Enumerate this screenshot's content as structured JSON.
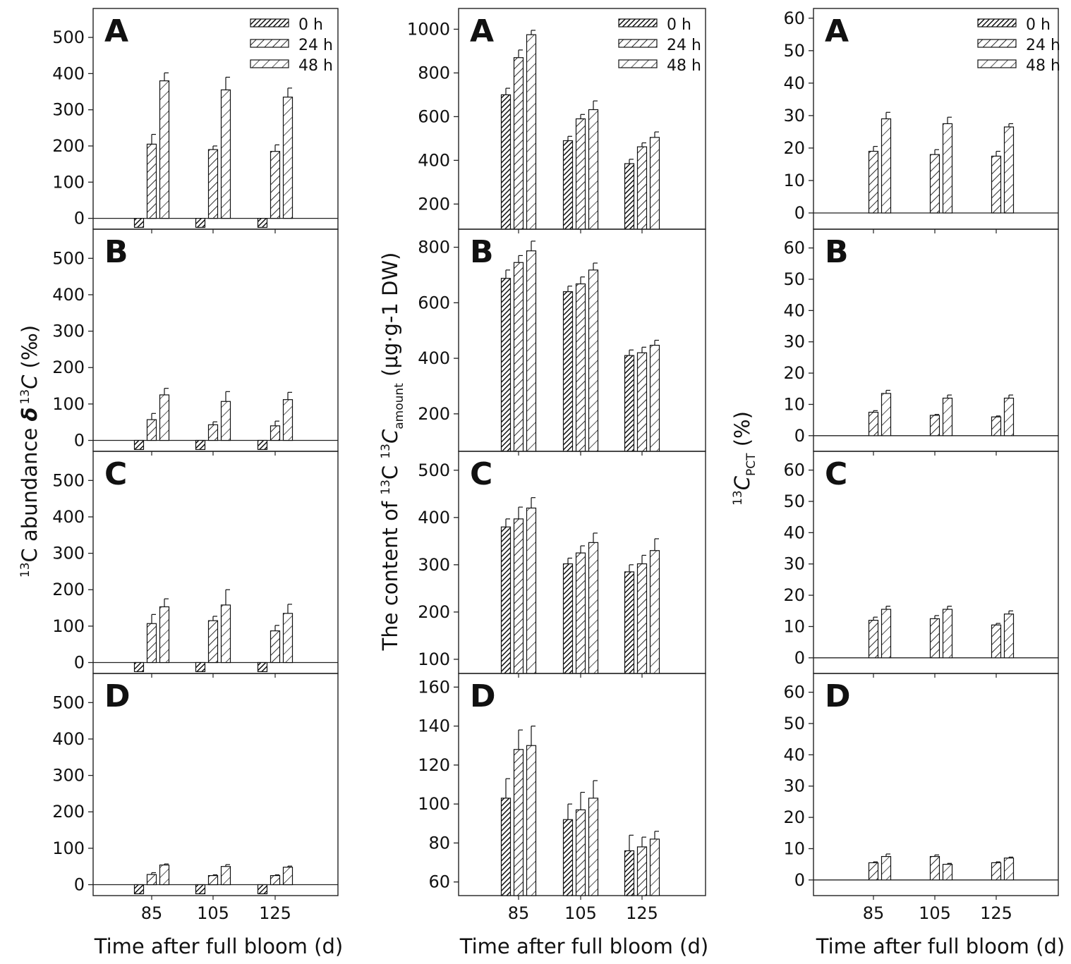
{
  "figure": {
    "x_title": "Time after full bloom (d)",
    "legend": [
      "0 h",
      "24 h",
      "48 h"
    ],
    "categories": [
      "85",
      "105",
      "125"
    ],
    "col1_ylabel": {
      "sup": "13",
      "main": "C abundance ",
      "delta": "δ",
      "sup2": "13",
      "c": "C",
      "unit": " (‰)"
    },
    "col2_ylabel": {
      "pre": "The content of ",
      "sup": "13",
      "c": "C ",
      "sup2": "13",
      "sub_c": "C",
      "sub": "amount",
      "unit": " (μg·g-1 DW)"
    },
    "col3_ylabel": {
      "sup": "13",
      "c": "C",
      "sub": "PCT",
      "unit": " (%)"
    }
  },
  "chart_data": [
    {
      "type": "bar",
      "column": 1,
      "panel": "A",
      "title": "A",
      "ylabel": "13C abundance δ 13C (‰)",
      "xlabel": "Time after full bloom (d)",
      "ylim": [
        -30,
        580
      ],
      "yticks": [
        0,
        100,
        200,
        300,
        400,
        500
      ],
      "categories": [
        "85",
        "105",
        "125"
      ],
      "series": [
        {
          "name": "0 h",
          "values": [
            -25,
            -25,
            -25
          ],
          "errors": [
            0,
            0,
            0
          ]
        },
        {
          "name": "24 h",
          "values": [
            205,
            190,
            185
          ],
          "errors": [
            27,
            10,
            18
          ]
        },
        {
          "name": "48 h",
          "values": [
            380,
            355,
            335
          ],
          "errors": [
            22,
            35,
            25
          ]
        }
      ]
    },
    {
      "type": "bar",
      "column": 1,
      "panel": "B",
      "title": "B",
      "ylim": [
        -30,
        580
      ],
      "yticks": [
        0,
        100,
        200,
        300,
        400,
        500
      ],
      "categories": [
        "85",
        "105",
        "125"
      ],
      "series": [
        {
          "name": "0 h",
          "values": [
            -25,
            -25,
            -25
          ],
          "errors": [
            0,
            0,
            0
          ]
        },
        {
          "name": "24 h",
          "values": [
            57,
            43,
            40
          ],
          "errors": [
            17,
            8,
            13
          ]
        },
        {
          "name": "48 h",
          "values": [
            125,
            107,
            112
          ],
          "errors": [
            18,
            27,
            20
          ]
        }
      ]
    },
    {
      "type": "bar",
      "column": 1,
      "panel": "C",
      "title": "C",
      "ylim": [
        -30,
        580
      ],
      "yticks": [
        0,
        100,
        200,
        300,
        400,
        500
      ],
      "categories": [
        "85",
        "105",
        "125"
      ],
      "series": [
        {
          "name": "0 h",
          "values": [
            -25,
            -25,
            -25
          ],
          "errors": [
            0,
            0,
            0
          ]
        },
        {
          "name": "24 h",
          "values": [
            107,
            115,
            87
          ],
          "errors": [
            25,
            12,
            15
          ]
        },
        {
          "name": "48 h",
          "values": [
            153,
            158,
            135
          ],
          "errors": [
            22,
            42,
            25
          ]
        }
      ]
    },
    {
      "type": "bar",
      "column": 1,
      "panel": "D",
      "title": "D",
      "ylim": [
        -30,
        580
      ],
      "yticks": [
        0,
        100,
        200,
        300,
        400,
        500
      ],
      "categories": [
        "85",
        "105",
        "125"
      ],
      "series": [
        {
          "name": "0 h",
          "values": [
            -25,
            -25,
            -25
          ],
          "errors": [
            0,
            0,
            0
          ]
        },
        {
          "name": "24 h",
          "values": [
            28,
            25,
            25
          ],
          "errors": [
            5,
            2,
            2
          ]
        },
        {
          "name": "48 h",
          "values": [
            54,
            50,
            48
          ],
          "errors": [
            3,
            5,
            3
          ]
        }
      ]
    },
    {
      "type": "bar",
      "column": 2,
      "panel": "A",
      "title": "A",
      "ylabel": "The content of 13C 13Camount (μg·g-1 DW)",
      "ylim": [
        85,
        1095
      ],
      "yticks": [
        200,
        400,
        600,
        800,
        1000
      ],
      "categories": [
        "85",
        "105",
        "125"
      ],
      "series": [
        {
          "name": "0 h",
          "values": [
            700,
            490,
            385
          ],
          "errors": [
            30,
            20,
            20
          ]
        },
        {
          "name": "24 h",
          "values": [
            870,
            590,
            462
          ],
          "errors": [
            35,
            20,
            18
          ]
        },
        {
          "name": "48 h",
          "values": [
            975,
            632,
            505
          ],
          "errors": [
            20,
            40,
            25
          ]
        }
      ]
    },
    {
      "type": "bar",
      "column": 2,
      "panel": "B",
      "title": "B",
      "ylim": [
        65,
        865
      ],
      "yticks": [
        200,
        400,
        600,
        800
      ],
      "categories": [
        "85",
        "105",
        "125"
      ],
      "series": [
        {
          "name": "0 h",
          "values": [
            688,
            640,
            410
          ],
          "errors": [
            30,
            20,
            20
          ]
        },
        {
          "name": "24 h",
          "values": [
            745,
            668,
            420
          ],
          "errors": [
            25,
            25,
            20
          ]
        },
        {
          "name": "48 h",
          "values": [
            787,
            718,
            447
          ],
          "errors": [
            35,
            25,
            18
          ]
        }
      ]
    },
    {
      "type": "bar",
      "column": 2,
      "panel": "C",
      "title": "C",
      "ylim": [
        70,
        540
      ],
      "yticks": [
        100,
        200,
        300,
        400,
        500
      ],
      "categories": [
        "85",
        "105",
        "125"
      ],
      "series": [
        {
          "name": "0 h",
          "values": [
            380,
            302,
            285
          ],
          "errors": [
            17,
            12,
            15
          ]
        },
        {
          "name": "24 h",
          "values": [
            397,
            325,
            302
          ],
          "errors": [
            25,
            15,
            18
          ]
        },
        {
          "name": "48 h",
          "values": [
            420,
            347,
            330
          ],
          "errors": [
            22,
            20,
            25
          ]
        }
      ]
    },
    {
      "type": "bar",
      "column": 2,
      "panel": "D",
      "title": "D",
      "ylim": [
        53,
        167
      ],
      "yticks": [
        60,
        80,
        100,
        120,
        140,
        160
      ],
      "categories": [
        "85",
        "105",
        "125"
      ],
      "series": [
        {
          "name": "0 h",
          "values": [
            103,
            92,
            76
          ],
          "errors": [
            10,
            8,
            8
          ]
        },
        {
          "name": "24 h",
          "values": [
            128,
            97,
            78
          ],
          "errors": [
            10,
            9,
            5
          ]
        },
        {
          "name": "48 h",
          "values": [
            130,
            103,
            82
          ],
          "errors": [
            10,
            9,
            4
          ]
        }
      ]
    },
    {
      "type": "bar",
      "column": 3,
      "panel": "A",
      "title": "A",
      "ylabel": "13CPCT (%)",
      "ylim": [
        -5,
        63
      ],
      "yticks": [
        0,
        10,
        20,
        30,
        40,
        50,
        60
      ],
      "categories": [
        "85",
        "105",
        "125"
      ],
      "series": [
        {
          "name": "0 h",
          "values": [
            0,
            0,
            0
          ],
          "errors": [
            0,
            0,
            0
          ]
        },
        {
          "name": "24 h",
          "values": [
            19,
            18,
            17.5
          ],
          "errors": [
            1.5,
            1.5,
            1.5
          ]
        },
        {
          "name": "48 h",
          "values": [
            29,
            27.5,
            26.5
          ],
          "errors": [
            2,
            2,
            1
          ]
        }
      ]
    },
    {
      "type": "bar",
      "column": 3,
      "panel": "B",
      "title": "B",
      "ylim": [
        -5,
        66
      ],
      "yticks": [
        0,
        10,
        20,
        30,
        40,
        50,
        60
      ],
      "categories": [
        "85",
        "105",
        "125"
      ],
      "series": [
        {
          "name": "0 h",
          "values": [
            0,
            0,
            0
          ],
          "errors": [
            0,
            0,
            0
          ]
        },
        {
          "name": "24 h",
          "values": [
            7.5,
            6.5,
            6
          ],
          "errors": [
            0.5,
            0.3,
            0.3
          ]
        },
        {
          "name": "48 h",
          "values": [
            13.5,
            12,
            12
          ],
          "errors": [
            1,
            1,
            1
          ]
        }
      ]
    },
    {
      "type": "bar",
      "column": 3,
      "panel": "C",
      "title": "C",
      "ylim": [
        -5,
        66
      ],
      "yticks": [
        0,
        10,
        20,
        30,
        40,
        50,
        60
      ],
      "categories": [
        "85",
        "105",
        "125"
      ],
      "series": [
        {
          "name": "0 h",
          "values": [
            0,
            0,
            0
          ],
          "errors": [
            0,
            0,
            0
          ]
        },
        {
          "name": "24 h",
          "values": [
            12,
            12.5,
            10.5
          ],
          "errors": [
            1,
            1,
            0.5
          ]
        },
        {
          "name": "48 h",
          "values": [
            15.5,
            15.5,
            14
          ],
          "errors": [
            1,
            1,
            1
          ]
        }
      ]
    },
    {
      "type": "bar",
      "column": 3,
      "panel": "D",
      "title": "D",
      "ylim": [
        -5,
        66
      ],
      "yticks": [
        0,
        10,
        20,
        30,
        40,
        50,
        60
      ],
      "categories": [
        "85",
        "105",
        "125"
      ],
      "series": [
        {
          "name": "0 h",
          "values": [
            0,
            0,
            0
          ],
          "errors": [
            0,
            0,
            0
          ]
        },
        {
          "name": "24 h",
          "values": [
            5.5,
            7.5,
            5.5
          ],
          "errors": [
            0.3,
            0.5,
            0.3
          ]
        },
        {
          "name": "48 h",
          "values": [
            7.5,
            5,
            7
          ],
          "errors": [
            0.8,
            0.3,
            0.3
          ]
        }
      ]
    }
  ]
}
